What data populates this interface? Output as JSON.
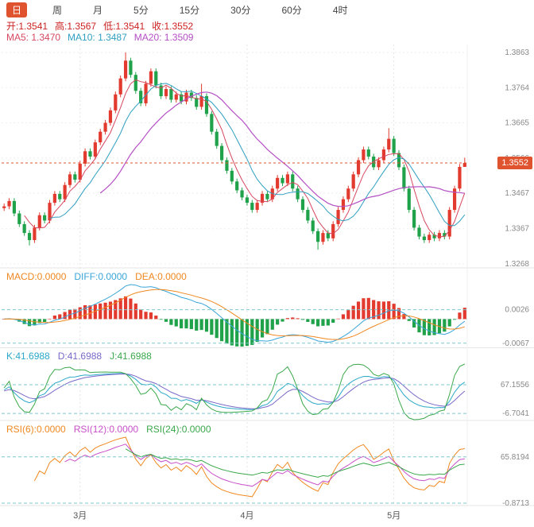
{
  "toolbar": {
    "tabs": [
      {
        "label": "日",
        "active": true
      },
      {
        "label": "周",
        "active": false
      },
      {
        "label": "月",
        "active": false
      },
      {
        "label": "5分",
        "active": false
      },
      {
        "label": "15分",
        "active": false
      },
      {
        "label": "30分",
        "active": false
      },
      {
        "label": "60分",
        "active": false
      },
      {
        "label": "4时",
        "active": false
      }
    ]
  },
  "ohlc_info": {
    "open": "开:1.3541",
    "high": "高:1.3567",
    "low": "低:1.3541",
    "close": "收:1.3552"
  },
  "ma_info": {
    "ma5": "MA5: 1.3470",
    "ma10": "MA10: 1.3487",
    "ma20": "MA20: 1.3509"
  },
  "main_chart": {
    "price_badge": "1.3552"
  },
  "macd_panel": {
    "legend": {
      "macd": "MACD:0.0000",
      "diff": "DIFF:0.0000",
      "dea": "DEA:0.0000"
    },
    "y_axis_labels": [
      {
        "value": 0.0026,
        "label": "0.0026"
      },
      {
        "value": -0.0067,
        "label": "-0.0067"
      }
    ]
  },
  "kdj_panel": {
    "legend": {
      "k": "K:41.6988",
      "d": "D:41.6988",
      "j": "J:41.6988"
    },
    "y_axis_labels": [
      {
        "value": 67.1556,
        "label": "67.1556"
      },
      {
        "value": -6.7041,
        "label": "-6.7041"
      }
    ]
  },
  "rsi_panel": {
    "legend": {
      "rsi6": "RSI(6):0.0000",
      "rsi12": "RSI(12):0.0000",
      "rsi24": "RSI(24):0.0000"
    },
    "y_axis_labels": [
      {
        "value": 65.8194,
        "label": "65.8194"
      },
      {
        "value": -0.8713,
        "label": "-0.8713"
      }
    ]
  },
  "colors": {
    "accent": "#e0532f",
    "up": "#e23a2e",
    "down": "#1fa24a",
    "ohlc_text": "#cc2222",
    "ma5": "#d6485f",
    "ma10": "#2f9fc0",
    "ma20": "#b44fc4",
    "diff": "#3aa5d8",
    "dea": "#f08820",
    "k": "#2aa8c8",
    "d": "#7a68c8",
    "j": "#3aa84b",
    "rsi6": "#f08820",
    "rsi12": "#c850c8",
    "rsi24": "#3aa84b",
    "axis_text": "#888888",
    "grid": "#e3e3e3",
    "dashed": "#7ec8ce"
  },
  "chart_data": {
    "type": "candlestick",
    "y_axis_labels": [
      1.3863,
      1.3764,
      1.3665,
      1.3566,
      1.3467,
      1.3367,
      1.3268
    ],
    "current_price": 1.3552,
    "months": [
      {
        "label": "3月",
        "index": 15
      },
      {
        "label": "4月",
        "index": 48
      },
      {
        "label": "5月",
        "index": 77
      }
    ],
    "overlays": [
      "MA5",
      "MA10",
      "MA20"
    ],
    "indicator_panels": [
      "MACD",
      "KDJ",
      "RSI"
    ],
    "candles_ohlc": [
      [
        1.3425,
        1.3438,
        1.3417,
        1.343
      ],
      [
        1.343,
        1.3453,
        1.3422,
        1.3445
      ],
      [
        1.3445,
        1.3453,
        1.3402,
        1.341
      ],
      [
        1.341,
        1.3418,
        1.3372,
        1.338
      ],
      [
        1.338,
        1.3388,
        1.3347,
        1.3355
      ],
      [
        1.3355,
        1.3363,
        1.332,
        1.3335
      ],
      [
        1.3335,
        1.3378,
        1.3327,
        1.337
      ],
      [
        1.337,
        1.3413,
        1.3362,
        1.3405
      ],
      [
        1.3405,
        1.3413,
        1.3382,
        1.339
      ],
      [
        1.339,
        1.3448,
        1.3382,
        1.344
      ],
      [
        1.344,
        1.3473,
        1.3432,
        1.3465
      ],
      [
        1.3465,
        1.3473,
        1.3442,
        1.345
      ],
      [
        1.345,
        1.3498,
        1.3442,
        1.349
      ],
      [
        1.349,
        1.3528,
        1.3482,
        1.352
      ],
      [
        1.352,
        1.3528,
        1.3497,
        1.3505
      ],
      [
        1.3505,
        1.3558,
        1.3497,
        1.355
      ],
      [
        1.355,
        1.3593,
        1.3542,
        1.3585
      ],
      [
        1.3585,
        1.3593,
        1.3562,
        1.357
      ],
      [
        1.357,
        1.3618,
        1.3562,
        1.361
      ],
      [
        1.361,
        1.3648,
        1.3602,
        1.364
      ],
      [
        1.364,
        1.3673,
        1.3632,
        1.3665
      ],
      [
        1.3665,
        1.3708,
        1.3657,
        1.37
      ],
      [
        1.37,
        1.3753,
        1.3692,
        1.3745
      ],
      [
        1.3745,
        1.3798,
        1.3737,
        1.379
      ],
      [
        1.379,
        1.3863,
        1.3782,
        1.384
      ],
      [
        1.384,
        1.3848,
        1.3792,
        1.38
      ],
      [
        1.38,
        1.3808,
        1.3747,
        1.3755
      ],
      [
        1.3755,
        1.3763,
        1.3712,
        1.372
      ],
      [
        1.372,
        1.3783,
        1.3712,
        1.3775
      ],
      [
        1.3775,
        1.3818,
        1.3767,
        1.381
      ],
      [
        1.381,
        1.3818,
        1.3762,
        1.377
      ],
      [
        1.377,
        1.3778,
        1.3732,
        1.374
      ],
      [
        1.374,
        1.3768,
        1.3732,
        1.376
      ],
      [
        1.376,
        1.3768,
        1.3722,
        1.373
      ],
      [
        1.373,
        1.3753,
        1.3722,
        1.3745
      ],
      [
        1.3745,
        1.3753,
        1.3717,
        1.3725
      ],
      [
        1.3725,
        1.3758,
        1.3717,
        1.375
      ],
      [
        1.375,
        1.3758,
        1.3727,
        1.3735
      ],
      [
        1.3735,
        1.3743,
        1.3702,
        1.371
      ],
      [
        1.371,
        1.3775,
        1.3702,
        1.374
      ],
      [
        1.374,
        1.3748,
        1.3682,
        1.369
      ],
      [
        1.369,
        1.3698,
        1.3632,
        1.364
      ],
      [
        1.364,
        1.3648,
        1.3592,
        1.36
      ],
      [
        1.36,
        1.3608,
        1.3552,
        1.356
      ],
      [
        1.356,
        1.3568,
        1.3522,
        1.353
      ],
      [
        1.353,
        1.3538,
        1.3492,
        1.35
      ],
      [
        1.35,
        1.3508,
        1.3467,
        1.3475
      ],
      [
        1.3475,
        1.3483,
        1.3447,
        1.3455
      ],
      [
        1.3455,
        1.3463,
        1.3432,
        1.344
      ],
      [
        1.344,
        1.3448,
        1.3412,
        1.342
      ],
      [
        1.342,
        1.3448,
        1.3412,
        1.344
      ],
      [
        1.344,
        1.3473,
        1.3432,
        1.3465
      ],
      [
        1.3465,
        1.3473,
        1.3442,
        1.345
      ],
      [
        1.345,
        1.3488,
        1.3442,
        1.348
      ],
      [
        1.348,
        1.3518,
        1.3472,
        1.351
      ],
      [
        1.351,
        1.3518,
        1.3487,
        1.3495
      ],
      [
        1.3495,
        1.3528,
        1.3487,
        1.352
      ],
      [
        1.352,
        1.3528,
        1.3472,
        1.348
      ],
      [
        1.348,
        1.3488,
        1.3442,
        1.345
      ],
      [
        1.345,
        1.3458,
        1.3412,
        1.342
      ],
      [
        1.342,
        1.3428,
        1.3382,
        1.339
      ],
      [
        1.339,
        1.3398,
        1.3352,
        1.336
      ],
      [
        1.336,
        1.3368,
        1.3308,
        1.333
      ],
      [
        1.333,
        1.3363,
        1.3322,
        1.3355
      ],
      [
        1.3355,
        1.3363,
        1.3332,
        1.334
      ],
      [
        1.334,
        1.3388,
        1.3332,
        1.338
      ],
      [
        1.338,
        1.3428,
        1.3372,
        1.342
      ],
      [
        1.342,
        1.3458,
        1.3412,
        1.345
      ],
      [
        1.345,
        1.3488,
        1.3442,
        1.348
      ],
      [
        1.348,
        1.3528,
        1.3472,
        1.352
      ],
      [
        1.352,
        1.3568,
        1.3512,
        1.356
      ],
      [
        1.356,
        1.3598,
        1.3552,
        1.359
      ],
      [
        1.359,
        1.3598,
        1.3562,
        1.357
      ],
      [
        1.357,
        1.3578,
        1.3532,
        1.354
      ],
      [
        1.354,
        1.3568,
        1.3532,
        1.356
      ],
      [
        1.356,
        1.3598,
        1.3552,
        1.359
      ],
      [
        1.359,
        1.365,
        1.3582,
        1.362
      ],
      [
        1.362,
        1.3628,
        1.3572,
        1.358
      ],
      [
        1.358,
        1.3588,
        1.3532,
        1.354
      ],
      [
        1.354,
        1.3548,
        1.3472,
        1.348
      ],
      [
        1.348,
        1.3488,
        1.3412,
        1.342
      ],
      [
        1.342,
        1.3428,
        1.3362,
        1.337
      ],
      [
        1.337,
        1.3378,
        1.3337,
        1.3345
      ],
      [
        1.3345,
        1.3353,
        1.3327,
        1.3335
      ],
      [
        1.3335,
        1.3358,
        1.3327,
        1.335
      ],
      [
        1.335,
        1.3358,
        1.3332,
        1.334
      ],
      [
        1.334,
        1.3363,
        1.3332,
        1.3355
      ],
      [
        1.3355,
        1.3363,
        1.3337,
        1.3345
      ],
      [
        1.3345,
        1.3428,
        1.3337,
        1.342
      ],
      [
        1.342,
        1.3488,
        1.3412,
        1.348
      ],
      [
        1.348,
        1.3549,
        1.3472,
        1.3541
      ],
      [
        1.3541,
        1.3567,
        1.3541,
        1.3552
      ]
    ]
  }
}
